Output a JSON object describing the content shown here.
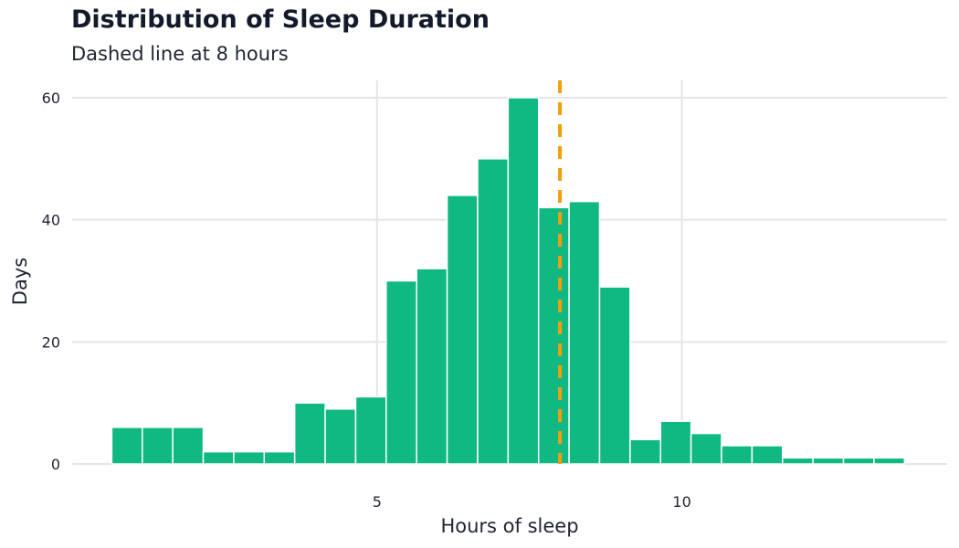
{
  "chart_data": {
    "type": "bar",
    "title": "Distribution of Sleep Duration",
    "subtitle": "Dashed line at 8 hours",
    "xlabel": "Hours of sleep",
    "ylabel": "Days",
    "bin_width": 0.5,
    "bins_start": [
      0.65,
      1.15,
      1.65,
      2.15,
      2.65,
      3.15,
      3.65,
      4.15,
      4.65,
      5.15,
      5.65,
      6.15,
      6.65,
      7.15,
      7.65,
      8.15,
      8.65,
      9.15,
      9.65,
      10.15,
      10.65,
      11.15,
      11.65,
      12.15,
      12.65,
      13.15
    ],
    "values": [
      6,
      6,
      6,
      2,
      2,
      2,
      10,
      9,
      11,
      30,
      32,
      44,
      50,
      60,
      42,
      43,
      29,
      4,
      7,
      5,
      3,
      3,
      1,
      1,
      1,
      1
    ],
    "x_ticks": [
      "5",
      "10"
    ],
    "x_tick_values": [
      5,
      10
    ],
    "y_ticks": [
      "0",
      "20",
      "40",
      "60"
    ],
    "y_tick_values": [
      0,
      20,
      40,
      60
    ],
    "xlim": [
      0.0,
      14.35
    ],
    "ylim": [
      0,
      63
    ],
    "reference_line": {
      "x": 8,
      "style": "dashed",
      "color": "#f59e0b"
    },
    "bar_color": "#10b981",
    "grid": true,
    "legend": "none"
  }
}
